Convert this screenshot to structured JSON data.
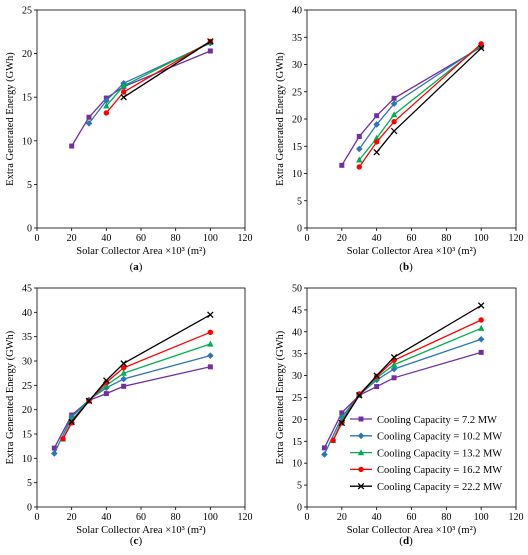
{
  "series_styles": [
    {
      "color": "#7030A0",
      "marker": "square"
    },
    {
      "color": "#2E75B6",
      "marker": "diamond"
    },
    {
      "color": "#00B050",
      "marker": "triangle"
    },
    {
      "color": "#FF0000",
      "marker": "circle"
    },
    {
      "color": "#000000",
      "marker": "x"
    }
  ],
  "chart_data": [
    {
      "type": "line",
      "panel_label": "(a)",
      "xlabel": "Solar Collector Area ×10³ (m²)",
      "ylabel": "Extra Generated Energy (GWh)",
      "xlim": [
        0,
        120
      ],
      "xticks": [
        0,
        20,
        40,
        60,
        80,
        100,
        120
      ],
      "ylim": [
        0,
        25
      ],
      "yticks": [
        0,
        5,
        10,
        15,
        20,
        25
      ],
      "grid": false,
      "series": [
        {
          "x": [
            20,
            30,
            40,
            50,
            100
          ],
          "values": [
            9.4,
            12.7,
            14.9,
            16.2,
            20.3
          ]
        },
        {
          "x": [
            30,
            40,
            50,
            100
          ],
          "values": [
            12.0,
            14.6,
            16.6,
            21.2
          ]
        },
        {
          "x": [
            40,
            50,
            100
          ],
          "values": [
            14.0,
            16.3,
            21.3
          ]
        },
        {
          "x": [
            40,
            50,
            100
          ],
          "values": [
            13.2,
            15.6,
            21.4
          ]
        },
        {
          "x": [
            50,
            100
          ],
          "values": [
            15.0,
            21.4
          ]
        }
      ]
    },
    {
      "type": "line",
      "panel_label": "(b)",
      "xlabel": "Solar Collector Area ×10³ (m²)",
      "ylabel": "Extra Generated Energy (GWh)",
      "xlim": [
        0,
        120
      ],
      "xticks": [
        0,
        20,
        40,
        60,
        80,
        100,
        120
      ],
      "ylim": [
        0,
        40
      ],
      "yticks": [
        0,
        5,
        10,
        15,
        20,
        25,
        30,
        35,
        40
      ],
      "grid": false,
      "series": [
        {
          "x": [
            20,
            30,
            40,
            50,
            100
          ],
          "values": [
            11.5,
            16.8,
            20.6,
            23.8,
            33.2
          ]
        },
        {
          "x": [
            30,
            40,
            50,
            100
          ],
          "values": [
            14.5,
            19.0,
            22.8,
            33.4
          ]
        },
        {
          "x": [
            30,
            40,
            50,
            100
          ],
          "values": [
            12.5,
            16.5,
            20.8,
            33.5
          ]
        },
        {
          "x": [
            30,
            40,
            50,
            100
          ],
          "values": [
            11.2,
            15.8,
            19.5,
            33.8
          ]
        },
        {
          "x": [
            40,
            50,
            100
          ],
          "values": [
            13.9,
            17.8,
            33.0
          ]
        }
      ]
    },
    {
      "type": "line",
      "panel_label": "(c)",
      "xlabel": "Solar Collector Area ×10³ (m²)",
      "ylabel": "Extra Generated Energy (GWh)",
      "xlim": [
        0,
        120
      ],
      "xticks": [
        0,
        20,
        40,
        60,
        80,
        100,
        120
      ],
      "ylim": [
        0,
        45
      ],
      "yticks": [
        0,
        5,
        10,
        15,
        20,
        25,
        30,
        35,
        40,
        45
      ],
      "grid": false,
      "series": [
        {
          "x": [
            10,
            20,
            30,
            40,
            50,
            100
          ],
          "values": [
            12.1,
            18.9,
            21.9,
            23.3,
            24.8,
            28.8
          ]
        },
        {
          "x": [
            10,
            20,
            30,
            40,
            50,
            100
          ],
          "values": [
            11.0,
            18.5,
            22.0,
            24.5,
            26.3,
            31.1
          ]
        },
        {
          "x": [
            15,
            20,
            30,
            40,
            50,
            100
          ],
          "values": [
            14.0,
            17.8,
            21.9,
            25.0,
            27.5,
            33.5
          ]
        },
        {
          "x": [
            15,
            20,
            30,
            40,
            50,
            100
          ],
          "values": [
            14.0,
            17.3,
            21.8,
            25.6,
            28.6,
            35.9
          ]
        },
        {
          "x": [
            20,
            30,
            40,
            50,
            100
          ],
          "values": [
            17.5,
            21.8,
            26.0,
            29.5,
            39.5
          ]
        }
      ]
    },
    {
      "type": "line",
      "panel_label": "(d)",
      "xlabel": "Solar Collector Area ×10³ (m²)",
      "ylabel": "Extra Generated Energy (GWh)",
      "xlim": [
        0,
        120
      ],
      "xticks": [
        0,
        20,
        40,
        60,
        80,
        100,
        120
      ],
      "ylim": [
        0,
        50
      ],
      "yticks": [
        0,
        5,
        10,
        15,
        20,
        25,
        30,
        35,
        40,
        45,
        50
      ],
      "grid": false,
      "legend_position": "lower-right",
      "series": [
        {
          "name": "Cooling Capacity = 7.2 MW",
          "x": [
            10,
            20,
            30,
            40,
            50,
            100
          ],
          "values": [
            13.5,
            21.5,
            25.5,
            27.5,
            29.5,
            35.3
          ]
        },
        {
          "name": "Cooling Capacity = 10.2 MW",
          "x": [
            10,
            20,
            30,
            40,
            50,
            100
          ],
          "values": [
            12.0,
            20.5,
            25.6,
            29.0,
            31.5,
            38.3
          ]
        },
        {
          "name": "Cooling Capacity = 13.2 MW",
          "x": [
            15,
            20,
            30,
            40,
            50,
            100
          ],
          "values": [
            15.2,
            19.8,
            25.7,
            29.5,
            32.5,
            40.8
          ]
        },
        {
          "name": "Cooling Capacity = 16.2 MW",
          "x": [
            15,
            20,
            30,
            40,
            50,
            100
          ],
          "values": [
            15.2,
            19.2,
            25.8,
            29.8,
            33.5,
            42.7
          ]
        },
        {
          "name": "Cooling Capacity = 22.2 MW",
          "x": [
            20,
            30,
            40,
            50,
            100
          ],
          "values": [
            19.2,
            25.5,
            30.0,
            34.2,
            46.0
          ]
        }
      ]
    }
  ]
}
